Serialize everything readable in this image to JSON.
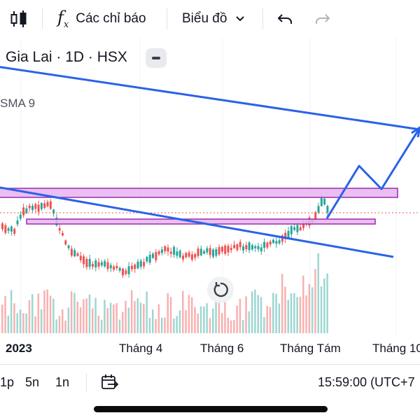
{
  "toolbar": {
    "indicators_label": "Các chỉ báo",
    "chart_type_label": "Biểu đồ"
  },
  "chart": {
    "title": "Gia Lai · 1D · HSX",
    "indicator_label": "SMA 9",
    "x_axis_labels": [
      "2023",
      "Tháng 4",
      "Tháng 6",
      "Tháng Tám",
      "Tháng 10"
    ]
  },
  "bottom_bar": {
    "ranges": [
      "1p",
      "5n",
      "1n"
    ],
    "time": "15:59:00 (UTC+7"
  },
  "colors": {
    "up": "#26a69a",
    "down": "#ef5350",
    "drawing": "#2a62e8",
    "zone_fill": "#e6b4ee",
    "zone_border": "#9c2bb0"
  }
}
